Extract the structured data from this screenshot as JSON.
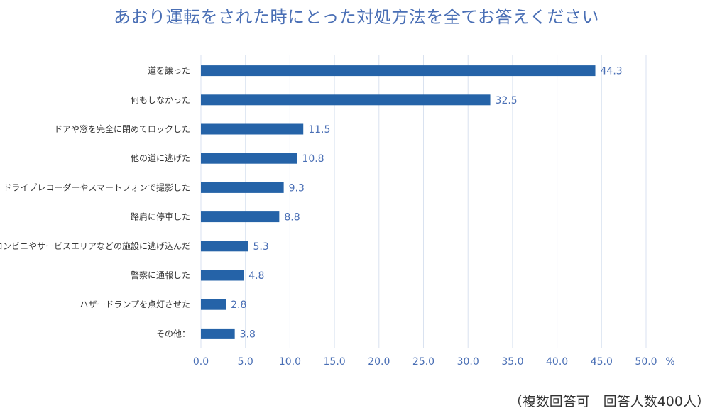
{
  "title": "あおり運転をされた時にとった対処方法を全てお答えください",
  "footnote": "（複数回答可　回答人数400人）",
  "chart_data": {
    "type": "bar",
    "orientation": "horizontal",
    "categories": [
      "道を譲った",
      "何もしなかった",
      "ドアや窓を完全に閉めてロックした",
      "他の道に逃げた",
      "ドライブレコーダーやスマートフォンで撮影した",
      "路肩に停車した",
      "コンビニやサービスエリアなどの施設に逃げ込んだ",
      "警察に通報した",
      "ハザードランプを点灯させた",
      "その他："
    ],
    "values": [
      44.3,
      32.5,
      11.5,
      10.8,
      9.3,
      8.8,
      5.3,
      4.8,
      2.8,
      3.8
    ],
    "value_labels": [
      "44.3",
      "32.5",
      "11.5",
      "10.8",
      "9.3",
      "8.8",
      "5.3",
      "4.8",
      "2.8",
      "3.8"
    ],
    "xlim": [
      0,
      50
    ],
    "x_ticks": [
      "0.0",
      "5.0",
      "10.0",
      "15.0",
      "20.0",
      "25.0",
      "30.0",
      "35.0",
      "40.0",
      "45.0",
      "50.0"
    ],
    "x_unit": "%",
    "grid": "vertical",
    "bar_color": "#2563a8",
    "text_color": "#4a6fb5"
  }
}
